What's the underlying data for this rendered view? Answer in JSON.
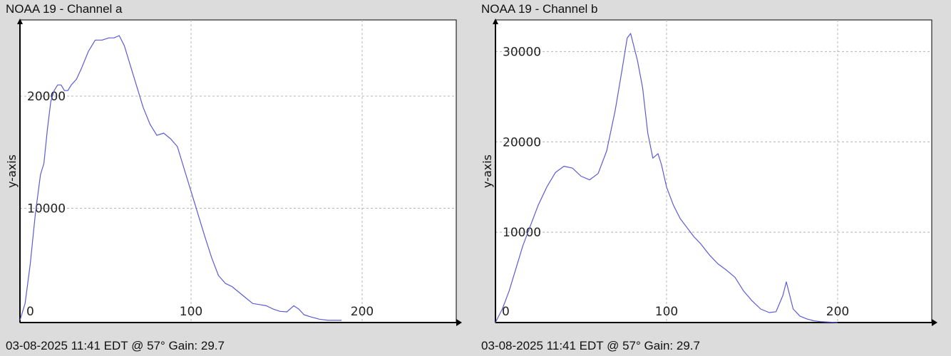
{
  "chart_data": [
    {
      "type": "line",
      "title": "NOAA 19 - Channel a",
      "footer": "03-08-2025 11:41 EDT @ 57° Gain: 29.7",
      "xlabel": "",
      "ylabel": "y-axis",
      "xlim": [
        0,
        255
      ],
      "ylim": [
        -200,
        26800
      ],
      "x_ticks": [
        0,
        100,
        200
      ],
      "y_ticks": [
        10000,
        20000
      ],
      "grid": true,
      "colors": {
        "line": "#5b5bd6",
        "grid": "#b4b4b4",
        "axis": "#000000",
        "plot_bg": "#ffffff"
      },
      "series": [
        {
          "x": [
            0,
            3,
            6,
            9,
            12,
            14,
            16,
            18,
            20,
            22,
            24,
            26,
            28,
            30,
            33,
            36,
            40,
            44,
            48,
            52,
            55,
            58,
            61,
            64,
            68,
            72,
            76,
            80,
            84,
            88,
            92,
            96,
            100,
            104,
            108,
            112,
            116,
            120,
            124,
            128,
            132,
            136,
            140,
            144,
            148,
            152,
            156,
            160,
            163,
            166,
            170,
            175,
            180,
            185,
            188
          ],
          "y": [
            0,
            1500,
            5000,
            9500,
            13000,
            14000,
            17000,
            19500,
            20500,
            21000,
            21000,
            20500,
            20500,
            21000,
            21500,
            22500,
            24000,
            25000,
            25000,
            25200,
            25200,
            25400,
            24500,
            23000,
            21000,
            19000,
            17500,
            16500,
            16700,
            16200,
            15500,
            13500,
            11500,
            9500,
            7500,
            5600,
            4000,
            3300,
            3000,
            2500,
            2000,
            1500,
            1400,
            1300,
            1000,
            800,
            750,
            1300,
            1000,
            500,
            300,
            100,
            0,
            0,
            0
          ]
        }
      ]
    },
    {
      "type": "line",
      "title": "NOAA 19 - Channel b",
      "footer": "03-08-2025 11:41 EDT @ 57° Gain: 29.7",
      "xlabel": "",
      "ylabel": "y-axis",
      "xlim": [
        0,
        255
      ],
      "ylim": [
        0,
        33500
      ],
      "x_ticks": [
        0,
        100,
        200
      ],
      "y_ticks": [
        10000,
        20000,
        30000
      ],
      "grid": true,
      "colors": {
        "line": "#5b5bd6",
        "grid": "#b4b4b4",
        "axis": "#000000",
        "plot_bg": "#ffffff"
      },
      "series": [
        {
          "x": [
            0,
            4,
            8,
            12,
            16,
            20,
            25,
            30,
            35,
            40,
            45,
            50,
            55,
            60,
            65,
            70,
            74,
            77,
            79,
            81,
            83,
            86,
            89,
            92,
            95,
            97,
            100,
            104,
            108,
            112,
            116,
            120,
            125,
            130,
            135,
            140,
            145,
            150,
            155,
            160,
            164,
            168,
            170,
            172,
            174,
            178,
            182,
            186,
            190,
            195,
            200
          ],
          "y": [
            0,
            1500,
            3500,
            6000,
            8500,
            10500,
            13000,
            15000,
            16600,
            17300,
            17100,
            16200,
            15800,
            16500,
            19000,
            23500,
            28000,
            31500,
            32000,
            30500,
            29000,
            26000,
            21000,
            18200,
            18700,
            17500,
            15000,
            13000,
            11500,
            10500,
            9500,
            8700,
            7500,
            6500,
            5800,
            5000,
            3500,
            2400,
            1500,
            1100,
            1200,
            3000,
            4500,
            3000,
            1500,
            700,
            400,
            200,
            100,
            50,
            0
          ]
        }
      ]
    }
  ]
}
